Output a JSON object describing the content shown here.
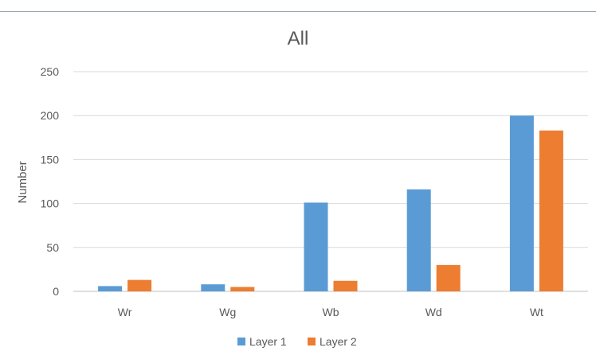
{
  "chart_data": {
    "type": "bar",
    "title": "All",
    "xlabel": "",
    "ylabel": "Number",
    "ylim": [
      0,
      250
    ],
    "yticks": [
      0,
      50,
      100,
      150,
      200,
      250
    ],
    "grid": true,
    "legend_position": "bottom",
    "categories": [
      "Wr",
      "Wg",
      "Wb",
      "Wd",
      "Wt"
    ],
    "series": [
      {
        "name": "Layer 1",
        "color": "#5b9bd5",
        "values": [
          6,
          8,
          101,
          116,
          200
        ]
      },
      {
        "name": "Layer 2",
        "color": "#ed7d31",
        "values": [
          13,
          5,
          12,
          30,
          183
        ]
      }
    ]
  }
}
